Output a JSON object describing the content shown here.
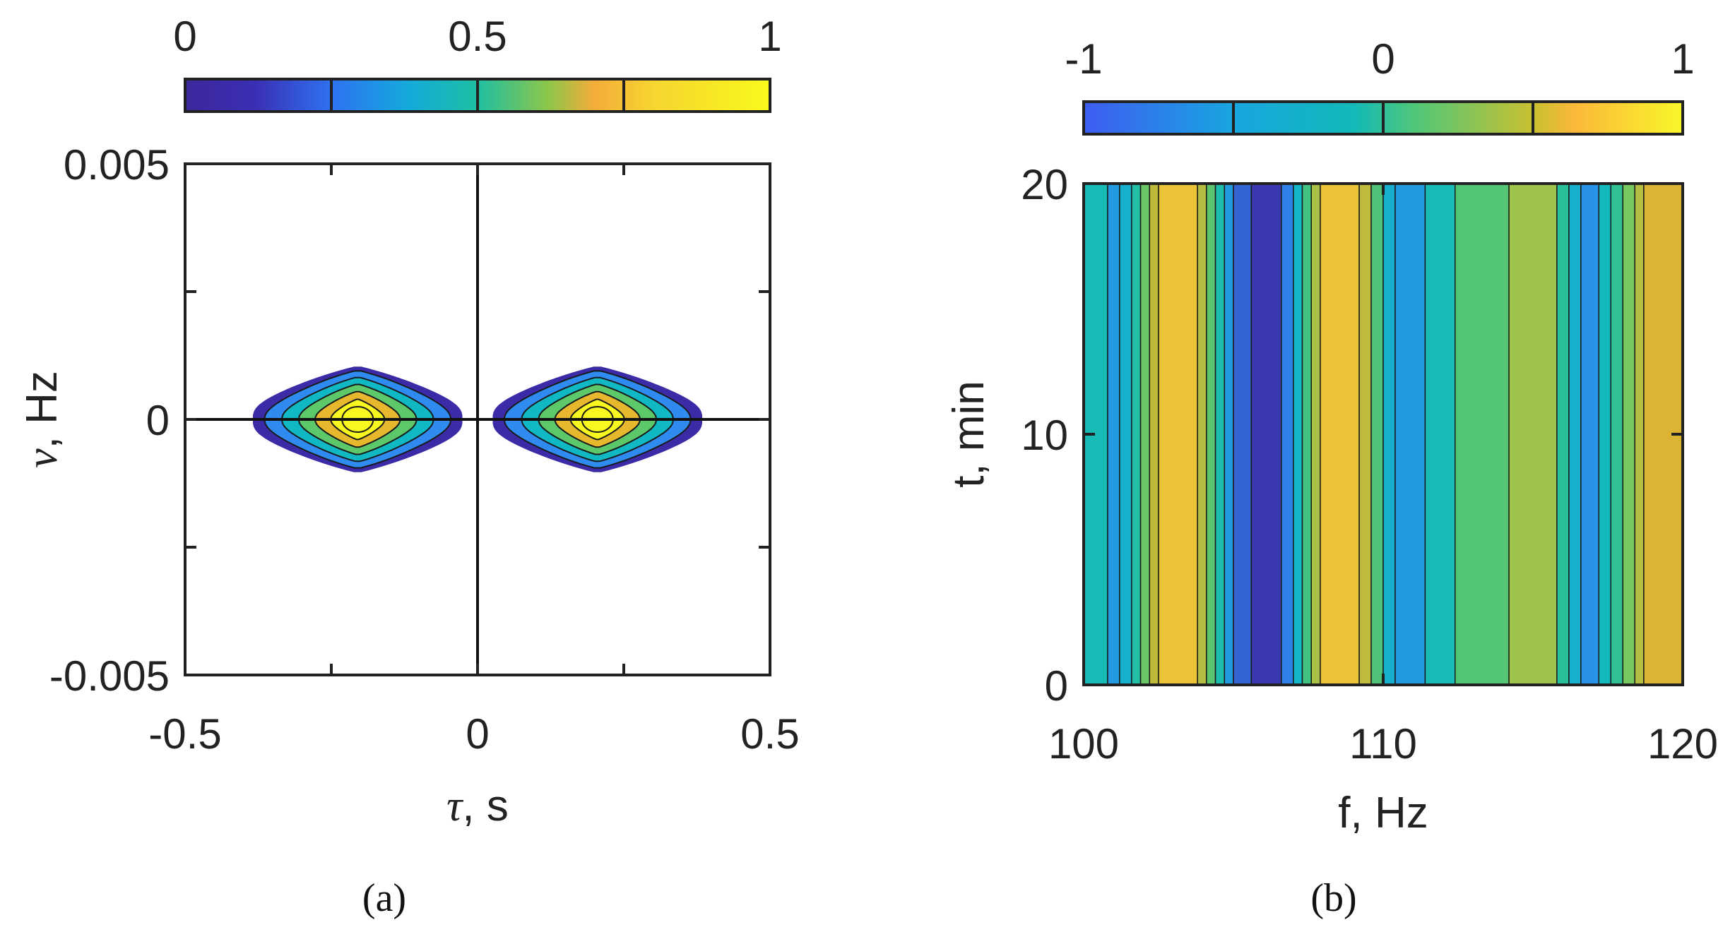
{
  "chart_data": [
    {
      "panel": "a",
      "type": "contour",
      "caption": "(a)",
      "xlabel_symbol": "τ",
      "xlabel_unit": ", s",
      "ylabel_symbol": "ν",
      "ylabel_unit": ", Hz",
      "xlim": [
        -0.5,
        0.5
      ],
      "ylim": [
        -0.005,
        0.005
      ],
      "xticks": [
        -0.5,
        -0.25,
        0,
        0.25,
        0.5
      ],
      "yticks": [
        -0.005,
        -0.0025,
        0,
        0.0025,
        0.005
      ],
      "xtick_labels": [
        "-0.5",
        "0",
        "0.5"
      ],
      "ytick_labels": [
        "-0.005",
        "0",
        "0.005"
      ],
      "colorbar": {
        "range": [
          0,
          1
        ],
        "tick_labels": [
          "0",
          "0.5",
          "1"
        ],
        "ticks": [
          0,
          0.25,
          0.5,
          0.75,
          1
        ],
        "location": "top"
      },
      "peaks": [
        {
          "tau": -0.205,
          "nu": 0,
          "value": 1,
          "tau_halfwidth": 0.16,
          "nu_halfwidth": 0.0008
        },
        {
          "tau": 0.205,
          "nu": 0,
          "value": 1,
          "tau_halfwidth": 0.16,
          "nu_halfwidth": 0.0008
        }
      ],
      "contour_levels": [
        0.1,
        0.25,
        0.4,
        0.55,
        0.7,
        0.85
      ],
      "reference_lines": {
        "tau": 0,
        "nu": 0
      },
      "colors": [
        "#3c2ba6",
        "#2f8bf0",
        "#10b8c4",
        "#5cc86a",
        "#e7b82e",
        "#f9f720"
      ]
    },
    {
      "panel": "b",
      "type": "heatmap",
      "caption": "(b)",
      "xlabel": "f, Hz",
      "ylabel": "t, min",
      "xlim": [
        100,
        120
      ],
      "ylim": [
        0,
        20
      ],
      "xtick_labels": [
        "100",
        "110",
        "120"
      ],
      "ytick_labels": [
        "0",
        "10",
        "20"
      ],
      "colorbar": {
        "range": [
          -1,
          1
        ],
        "tick_labels": [
          "-1",
          "0",
          "1"
        ],
        "ticks": [
          -1,
          -0.5,
          0,
          0.5,
          1
        ],
        "location": "top"
      },
      "note": "value varies with frequency only, constant in time",
      "bands": [
        {
          "f0": 100.0,
          "f1": 100.8,
          "value": -0.25
        },
        {
          "f0": 100.8,
          "f1": 101.2,
          "value": -0.55
        },
        {
          "f0": 101.2,
          "f1": 101.6,
          "value": -0.4
        },
        {
          "f0": 101.6,
          "f1": 101.9,
          "value": -0.15
        },
        {
          "f0": 101.9,
          "f1": 102.2,
          "value": 0.2
        },
        {
          "f0": 102.2,
          "f1": 102.5,
          "value": 0.55
        },
        {
          "f0": 102.5,
          "f1": 103.8,
          "value": 0.85
        },
        {
          "f0": 103.8,
          "f1": 104.1,
          "value": 0.5
        },
        {
          "f0": 104.1,
          "f1": 104.4,
          "value": 0.15
        },
        {
          "f0": 104.4,
          "f1": 104.7,
          "value": -0.2
        },
        {
          "f0": 104.7,
          "f1": 105.0,
          "value": -0.55
        },
        {
          "f0": 105.0,
          "f1": 105.6,
          "value": -0.8
        },
        {
          "f0": 105.6,
          "f1": 106.6,
          "value": -0.95
        },
        {
          "f0": 106.6,
          "f1": 107.0,
          "value": -0.7
        },
        {
          "f0": 107.0,
          "f1": 107.3,
          "value": -0.35
        },
        {
          "f0": 107.3,
          "f1": 107.6,
          "value": 0.05
        },
        {
          "f0": 107.6,
          "f1": 107.9,
          "value": 0.45
        },
        {
          "f0": 107.9,
          "f1": 109.2,
          "value": 0.85
        },
        {
          "f0": 109.2,
          "f1": 109.6,
          "value": 0.55
        },
        {
          "f0": 109.6,
          "f1": 110.0,
          "value": 0.1
        },
        {
          "f0": 110.0,
          "f1": 110.4,
          "value": -0.4
        },
        {
          "f0": 110.4,
          "f1": 111.4,
          "value": -0.55
        },
        {
          "f0": 111.4,
          "f1": 112.4,
          "value": -0.25
        },
        {
          "f0": 112.4,
          "f1": 114.2,
          "value": 0.12
        },
        {
          "f0": 114.2,
          "f1": 115.8,
          "value": 0.4
        },
        {
          "f0": 115.8,
          "f1": 116.2,
          "value": -0.1
        },
        {
          "f0": 116.2,
          "f1": 116.6,
          "value": -0.4
        },
        {
          "f0": 116.6,
          "f1": 117.2,
          "value": -0.6
        },
        {
          "f0": 117.2,
          "f1": 117.6,
          "value": -0.3
        },
        {
          "f0": 117.6,
          "f1": 118.0,
          "value": -0.05
        },
        {
          "f0": 118.0,
          "f1": 118.4,
          "value": 0.25
        },
        {
          "f0": 118.4,
          "f1": 118.7,
          "value": 0.5
        },
        {
          "f0": 118.7,
          "f1": 120.0,
          "value": 0.7
        }
      ],
      "colors": [
        "#3c2ba6",
        "#2f8bf0",
        "#10b8c4",
        "#34c28a",
        "#8ec850",
        "#d9b132",
        "#f9d23a"
      ]
    }
  ]
}
